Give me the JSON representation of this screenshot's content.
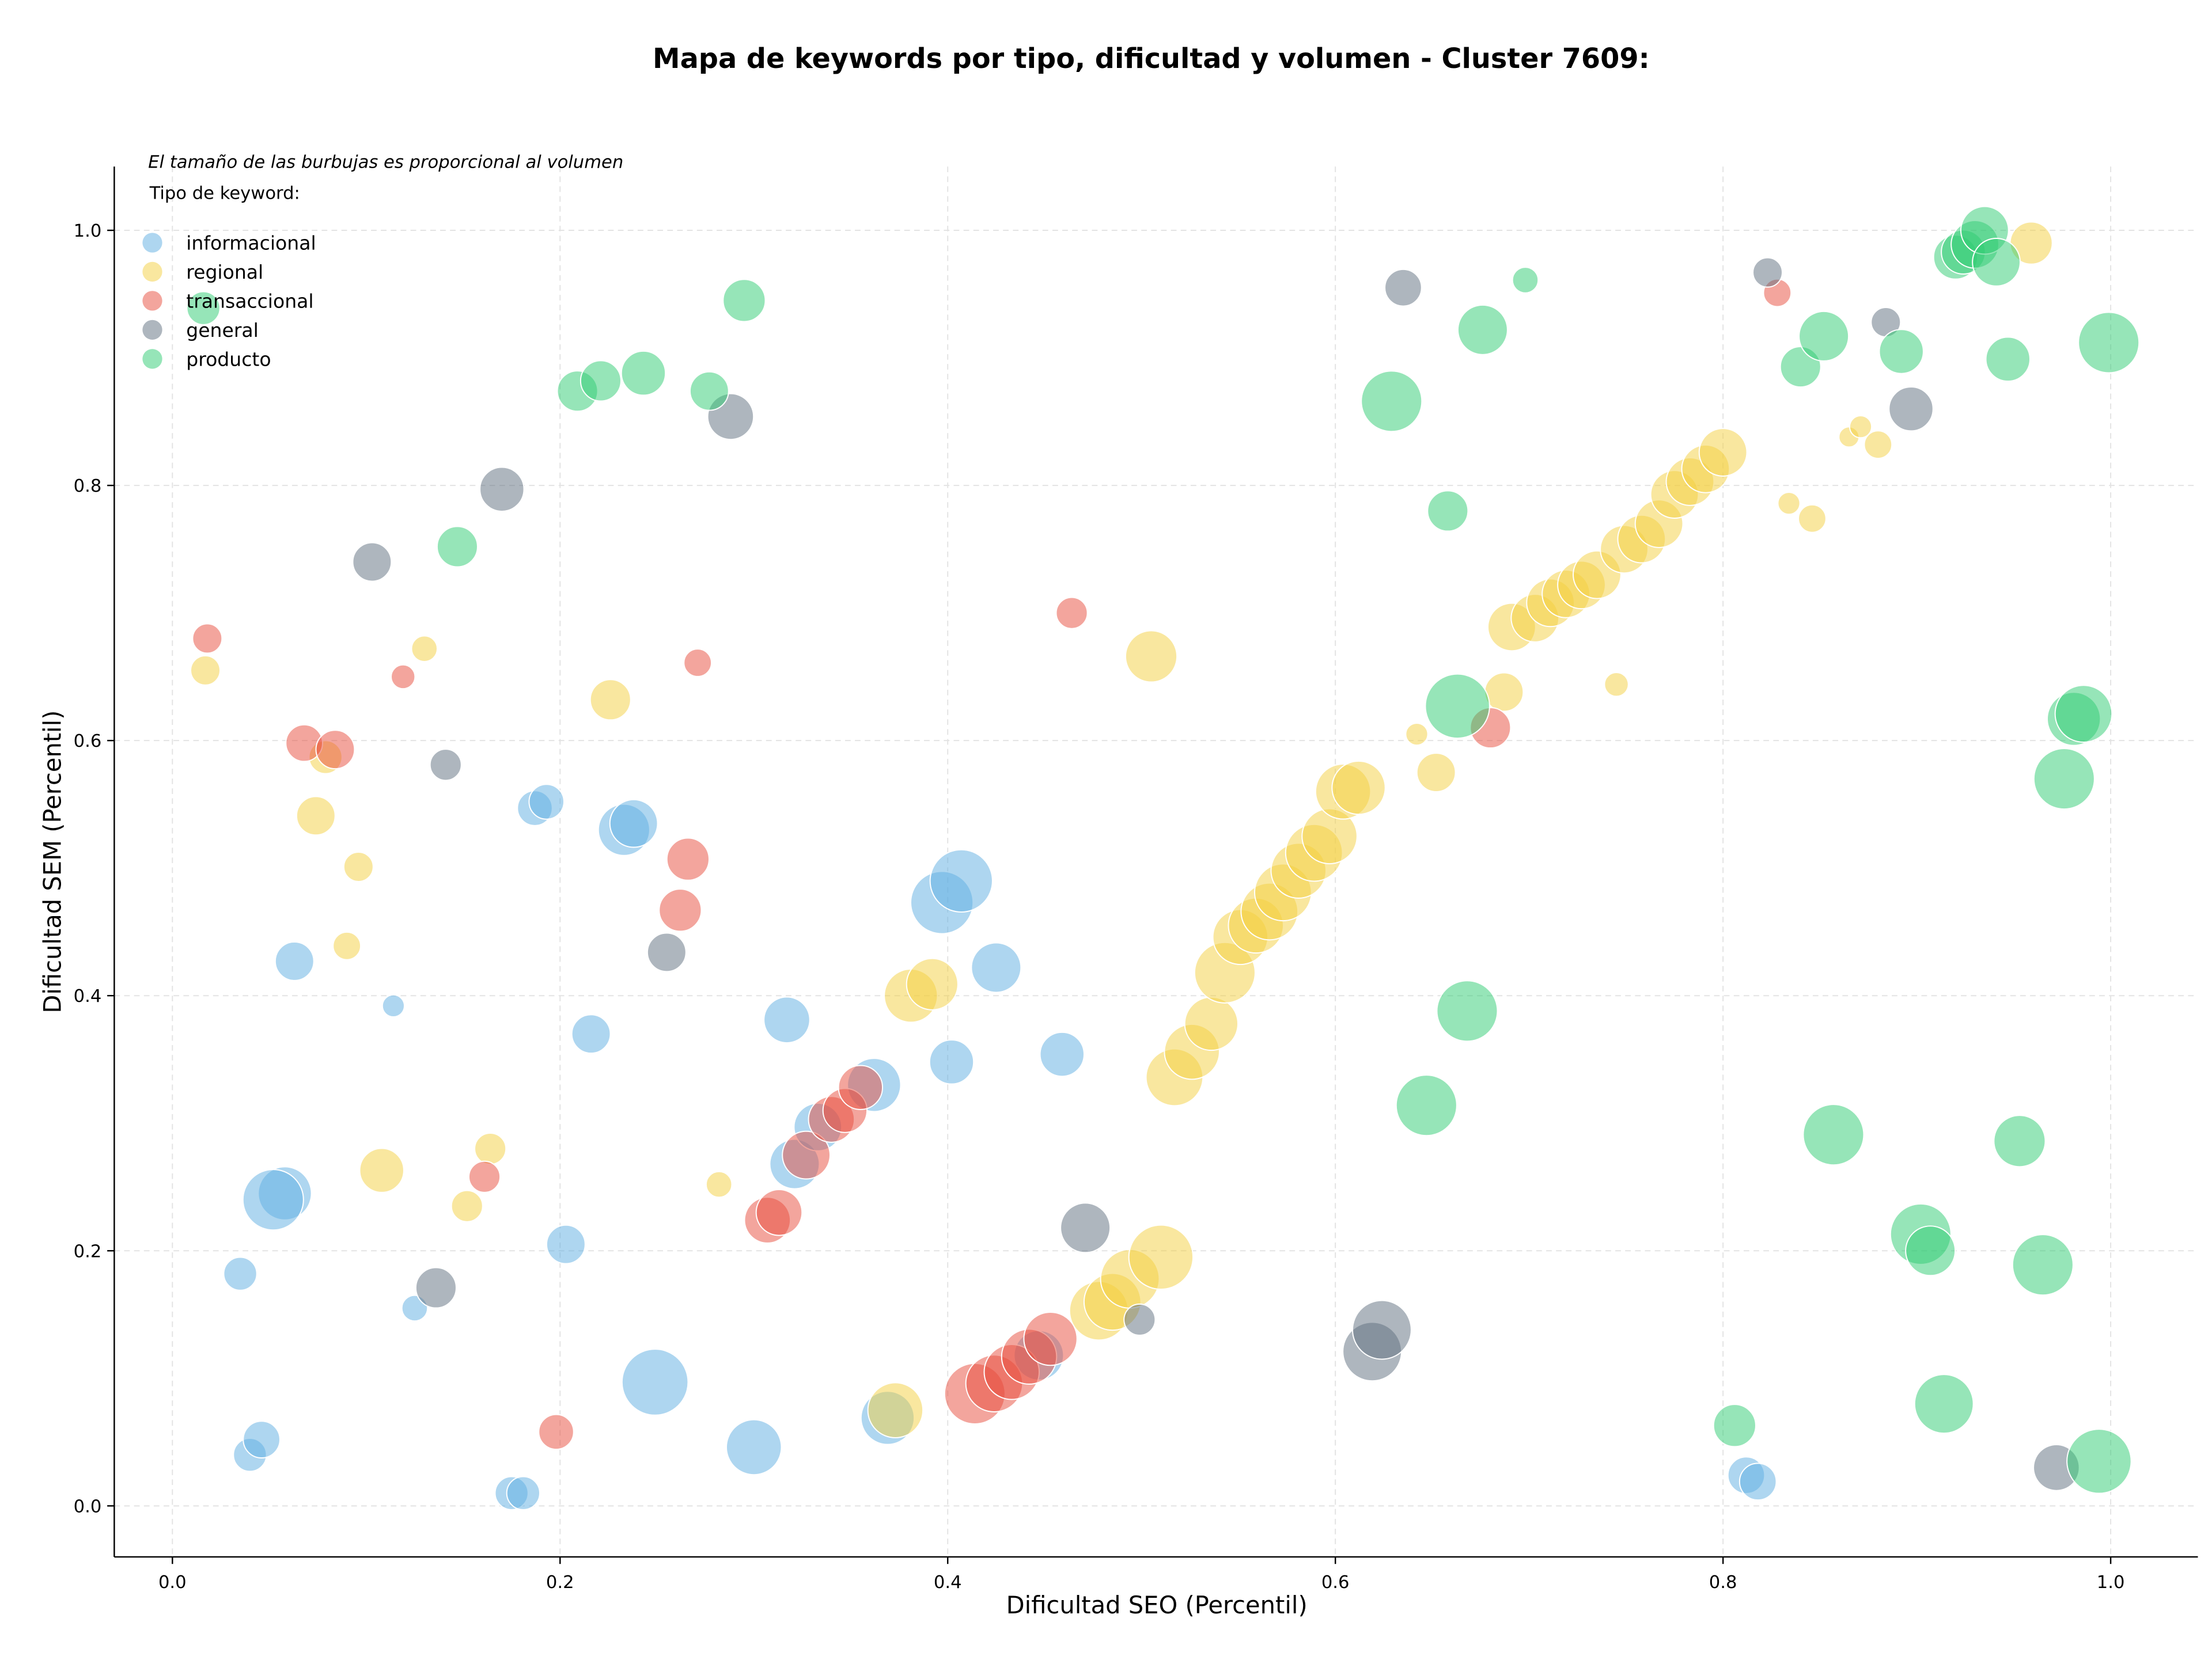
{
  "chart_data": {
    "type": "scatter",
    "title": "Mapa de keywords por tipo, dificultad y volumen - Cluster 7609:",
    "xlabel": "Dificultad SEO (Percentil)",
    "ylabel": "Dificultad SEM (Percentil)",
    "xlim": [
      -0.03,
      1.045
    ],
    "ylim": [
      -0.04,
      1.05
    ],
    "xticks": [
      0.0,
      0.2,
      0.4,
      0.6,
      0.8,
      1.0
    ],
    "yticks": [
      0.0,
      0.2,
      0.4,
      0.6,
      0.8,
      1.0
    ],
    "xtick_labels": [
      "0.0",
      "0.2",
      "0.4",
      "0.6",
      "0.8",
      "1.0"
    ],
    "ytick_labels": [
      "0.0",
      "0.2",
      "0.4",
      "0.6",
      "0.8",
      "1.0"
    ],
    "grid": true,
    "annotation": "El tamaño de las burbujas es proporcional al volumen",
    "legend": {
      "title": "Tipo de keyword:",
      "placement": "top-left"
    },
    "colors": {
      "informacional": "#5dade2",
      "regional": "#f4d03f",
      "transaccional": "#e74c3c",
      "general": "#5d6d7e",
      "producto": "#2ecc71"
    },
    "series": [
      {
        "name": "informacional",
        "points": [
          [
            0.058,
            0.245,
            29
          ],
          [
            0.052,
            0.24,
            33
          ],
          [
            0.035,
            0.182,
            18
          ],
          [
            0.063,
            0.427,
            21
          ],
          [
            0.114,
            0.392,
            12
          ],
          [
            0.04,
            0.04,
            18
          ],
          [
            0.046,
            0.052,
            20
          ],
          [
            0.125,
            0.155,
            14
          ],
          [
            0.187,
            0.547,
            19
          ],
          [
            0.193,
            0.552,
            19
          ],
          [
            0.216,
            0.37,
            21
          ],
          [
            0.203,
            0.205,
            21
          ],
          [
            0.233,
            0.53,
            28
          ],
          [
            0.238,
            0.535,
            26
          ],
          [
            0.175,
            0.01,
            18
          ],
          [
            0.181,
            0.01,
            18
          ],
          [
            0.249,
            0.097,
            36
          ],
          [
            0.3,
            0.046,
            30
          ],
          [
            0.317,
            0.381,
            25
          ],
          [
            0.321,
            0.268,
            27
          ],
          [
            0.333,
            0.297,
            26
          ],
          [
            0.362,
            0.33,
            29
          ],
          [
            0.369,
            0.069,
            29
          ],
          [
            0.397,
            0.473,
            34
          ],
          [
            0.407,
            0.49,
            34
          ],
          [
            0.402,
            0.348,
            24
          ],
          [
            0.425,
            0.422,
            27
          ],
          [
            0.459,
            0.354,
            24
          ],
          [
            0.447,
            0.118,
            27
          ],
          [
            0.812,
            0.024,
            20
          ],
          [
            0.818,
            0.019,
            20
          ]
        ]
      },
      {
        "name": "regional",
        "points": [
          [
            0.017,
            0.655,
            16
          ],
          [
            0.074,
            0.541,
            21
          ],
          [
            0.079,
            0.587,
            18
          ],
          [
            0.096,
            0.501,
            16
          ],
          [
            0.09,
            0.439,
            15
          ],
          [
            0.108,
            0.263,
            24
          ],
          [
            0.13,
            0.672,
            14
          ],
          [
            0.152,
            0.235,
            17
          ],
          [
            0.164,
            0.28,
            17
          ],
          [
            0.226,
            0.632,
            22
          ],
          [
            0.282,
            0.252,
            14
          ],
          [
            0.373,
            0.075,
            30
          ],
          [
            0.381,
            0.4,
            29
          ],
          [
            0.392,
            0.409,
            28
          ],
          [
            0.505,
            0.666,
            28
          ],
          [
            0.478,
            0.153,
            32
          ],
          [
            0.485,
            0.16,
            31
          ],
          [
            0.494,
            0.178,
            32
          ],
          [
            0.51,
            0.195,
            35
          ],
          [
            0.517,
            0.336,
            31
          ],
          [
            0.526,
            0.356,
            30
          ],
          [
            0.536,
            0.378,
            29
          ],
          [
            0.543,
            0.418,
            33
          ],
          [
            0.551,
            0.446,
            30
          ],
          [
            0.559,
            0.455,
            30
          ],
          [
            0.566,
            0.466,
            31
          ],
          [
            0.573,
            0.481,
            31
          ],
          [
            0.581,
            0.498,
            30
          ],
          [
            0.589,
            0.512,
            31
          ],
          [
            0.597,
            0.525,
            30
          ],
          [
            0.604,
            0.56,
            30
          ],
          [
            0.612,
            0.563,
            29
          ],
          [
            0.642,
            0.605,
            12
          ],
          [
            0.652,
            0.575,
            21
          ],
          [
            0.687,
            0.638,
            21
          ],
          [
            0.691,
            0.689,
            26
          ],
          [
            0.703,
            0.696,
            26
          ],
          [
            0.711,
            0.708,
            26
          ],
          [
            0.719,
            0.715,
            26
          ],
          [
            0.727,
            0.722,
            26
          ],
          [
            0.735,
            0.73,
            26
          ],
          [
            0.745,
            0.644,
            13
          ],
          [
            0.749,
            0.75,
            26
          ],
          [
            0.758,
            0.758,
            26
          ],
          [
            0.767,
            0.77,
            26
          ],
          [
            0.775,
            0.793,
            26
          ],
          [
            0.783,
            0.803,
            26
          ],
          [
            0.791,
            0.813,
            26
          ],
          [
            0.8,
            0.826,
            26
          ],
          [
            0.834,
            0.786,
            12
          ],
          [
            0.846,
            0.774,
            15
          ],
          [
            0.865,
            0.838,
            11
          ],
          [
            0.871,
            0.846,
            12
          ],
          [
            0.88,
            0.832,
            15
          ],
          [
            0.959,
            0.99,
            23
          ]
        ]
      },
      {
        "name": "transaccional",
        "points": [
          [
            0.018,
            0.68,
            16
          ],
          [
            0.068,
            0.598,
            20
          ],
          [
            0.084,
            0.593,
            21
          ],
          [
            0.119,
            0.65,
            13
          ],
          [
            0.161,
            0.258,
            17
          ],
          [
            0.198,
            0.058,
            19
          ],
          [
            0.262,
            0.467,
            23
          ],
          [
            0.266,
            0.507,
            23
          ],
          [
            0.271,
            0.661,
            15
          ],
          [
            0.307,
            0.224,
            25
          ],
          [
            0.313,
            0.23,
            25
          ],
          [
            0.327,
            0.275,
            26
          ],
          [
            0.34,
            0.303,
            25
          ],
          [
            0.347,
            0.31,
            24
          ],
          [
            0.355,
            0.328,
            24
          ],
          [
            0.414,
            0.088,
            33
          ],
          [
            0.424,
            0.096,
            31
          ],
          [
            0.433,
            0.105,
            30
          ],
          [
            0.442,
            0.117,
            30
          ],
          [
            0.453,
            0.131,
            29
          ],
          [
            0.464,
            0.7,
            17
          ],
          [
            0.68,
            0.61,
            22
          ],
          [
            0.828,
            0.951,
            15
          ]
        ]
      },
      {
        "name": "general",
        "points": [
          [
            0.103,
            0.74,
            21
          ],
          [
            0.136,
            0.171,
            22
          ],
          [
            0.141,
            0.581,
            17
          ],
          [
            0.17,
            0.797,
            24
          ],
          [
            0.255,
            0.434,
            21
          ],
          [
            0.288,
            0.854,
            25
          ],
          [
            0.471,
            0.218,
            27
          ],
          [
            0.499,
            0.146,
            17
          ],
          [
            0.619,
            0.121,
            32
          ],
          [
            0.624,
            0.138,
            32
          ],
          [
            0.635,
            0.955,
            20
          ],
          [
            0.823,
            0.967,
            16
          ],
          [
            0.884,
            0.928,
            16
          ],
          [
            0.897,
            0.86,
            24
          ],
          [
            0.972,
            0.03,
            25
          ]
        ]
      },
      {
        "name": "producto",
        "points": [
          [
            0.016,
            0.939,
            18
          ],
          [
            0.147,
            0.752,
            22
          ],
          [
            0.209,
            0.874,
            22
          ],
          [
            0.221,
            0.882,
            22
          ],
          [
            0.243,
            0.888,
            24
          ],
          [
            0.277,
            0.874,
            21
          ],
          [
            0.295,
            0.945,
            23
          ],
          [
            0.629,
            0.866,
            33
          ],
          [
            0.658,
            0.78,
            22
          ],
          [
            0.663,
            0.627,
            35
          ],
          [
            0.676,
            0.922,
            27
          ],
          [
            0.668,
            0.388,
            33
          ],
          [
            0.647,
            0.314,
            33
          ],
          [
            0.698,
            0.961,
            14
          ],
          [
            0.806,
            0.063,
            23
          ],
          [
            0.84,
            0.893,
            22
          ],
          [
            0.852,
            0.917,
            27
          ],
          [
            0.857,
            0.291,
            33
          ],
          [
            0.892,
            0.905,
            24
          ],
          [
            0.902,
            0.213,
            33
          ],
          [
            0.907,
            0.2,
            27
          ],
          [
            0.914,
            0.08,
            32
          ],
          [
            0.92,
            0.979,
            24
          ],
          [
            0.924,
            0.983,
            24
          ],
          [
            0.93,
            0.989,
            26
          ],
          [
            0.935,
            1.0,
            26
          ],
          [
            0.941,
            0.975,
            26
          ],
          [
            0.947,
            0.899,
            24
          ],
          [
            0.953,
            0.286,
            28
          ],
          [
            0.965,
            0.189,
            33
          ],
          [
            0.976,
            0.57,
            33
          ],
          [
            0.981,
            0.617,
            29
          ],
          [
            0.986,
            0.621,
            31
          ],
          [
            0.994,
            0.035,
            35
          ],
          [
            0.999,
            0.912,
            33
          ]
        ]
      }
    ]
  }
}
